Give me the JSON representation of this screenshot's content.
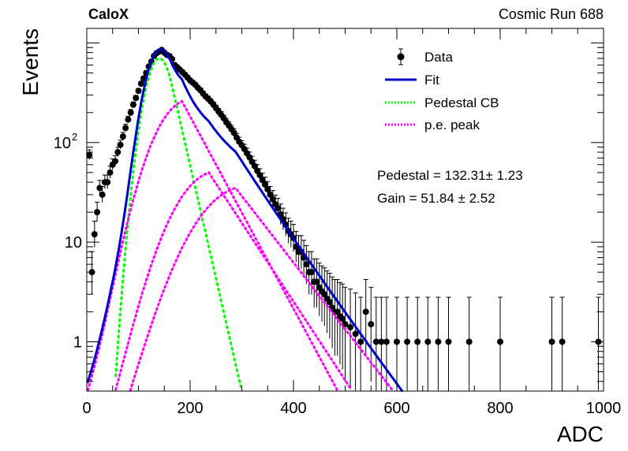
{
  "chart_data": {
    "type": "scatter",
    "experiment_label": "CaloX",
    "run_label": "Cosmic Run 688",
    "xlabel": "ADC",
    "ylabel": "Events",
    "xlim": [
      0,
      1000
    ],
    "ylim": [
      0.32,
      1400
    ],
    "y_scale": "log",
    "grid": false,
    "legend_position": "top-right",
    "x_ticks": [
      {
        "value": 0,
        "label": "0"
      },
      {
        "value": 200,
        "label": "200"
      },
      {
        "value": 400,
        "label": "400"
      },
      {
        "value": 600,
        "label": "600"
      },
      {
        "value": 800,
        "label": "800"
      },
      {
        "value": 1000,
        "label": "1000"
      }
    ],
    "y_ticks": [
      {
        "value": 1,
        "label": "1"
      },
      {
        "value": 10,
        "label": "10"
      },
      {
        "value": 100,
        "label": "10",
        "exponent": "2"
      }
    ],
    "legend": [
      {
        "label": "Data",
        "style": "marker",
        "color": "#000000"
      },
      {
        "label": "Fit",
        "style": "solid",
        "color": "#0000cc"
      },
      {
        "label": "Pedestal CB",
        "style": "dotted",
        "color": "#00ff00"
      },
      {
        "label": "p.e. peak",
        "style": "dotted",
        "color": "#ff00ff"
      }
    ],
    "annotations": [
      {
        "text": "Pedestal = 132.31± 1.23"
      },
      {
        "text": "Gain = 51.84 ± 2.52"
      }
    ],
    "fit": {
      "pedestal": 132.31,
      "pedestal_err": 1.23,
      "gain": 51.84,
      "gain_err": 2.52
    },
    "series": [
      {
        "name": "Data",
        "color": "#000000",
        "points": [
          [
            5,
            75
          ],
          [
            10,
            5
          ],
          [
            15,
            12
          ],
          [
            20,
            20
          ],
          [
            25,
            35
          ],
          [
            30,
            30
          ],
          [
            35,
            40
          ],
          [
            40,
            40
          ],
          [
            45,
            50
          ],
          [
            50,
            60
          ],
          [
            55,
            65
          ],
          [
            60,
            80
          ],
          [
            65,
            95
          ],
          [
            70,
            115
          ],
          [
            75,
            140
          ],
          [
            80,
            170
          ],
          [
            85,
            200
          ],
          [
            90,
            240
          ],
          [
            95,
            280
          ],
          [
            100,
            330
          ],
          [
            105,
            390
          ],
          [
            110,
            440
          ],
          [
            115,
            500
          ],
          [
            120,
            580
          ],
          [
            125,
            650
          ],
          [
            130,
            740
          ],
          [
            135,
            790
          ],
          [
            140,
            820
          ],
          [
            145,
            850
          ],
          [
            150,
            800
          ],
          [
            155,
            760
          ],
          [
            160,
            740
          ],
          [
            165,
            690
          ],
          [
            170,
            600
          ],
          [
            175,
            570
          ],
          [
            180,
            540
          ],
          [
            185,
            510
          ],
          [
            190,
            480
          ],
          [
            195,
            450
          ],
          [
            200,
            420
          ],
          [
            205,
            400
          ],
          [
            210,
            380
          ],
          [
            215,
            355
          ],
          [
            220,
            335
          ],
          [
            225,
            310
          ],
          [
            230,
            290
          ],
          [
            235,
            275
          ],
          [
            240,
            258
          ],
          [
            245,
            240
          ],
          [
            250,
            222
          ],
          [
            255,
            205
          ],
          [
            260,
            190
          ],
          [
            265,
            175
          ],
          [
            270,
            160
          ],
          [
            275,
            148
          ],
          [
            280,
            136
          ],
          [
            285,
            125
          ],
          [
            290,
            112
          ],
          [
            295,
            102
          ],
          [
            300,
            94
          ],
          [
            305,
            86
          ],
          [
            310,
            78
          ],
          [
            315,
            71
          ],
          [
            320,
            64
          ],
          [
            325,
            58
          ],
          [
            330,
            52
          ],
          [
            335,
            47
          ],
          [
            340,
            42
          ],
          [
            345,
            38
          ],
          [
            350,
            34
          ],
          [
            355,
            30
          ],
          [
            360,
            27
          ],
          [
            365,
            24
          ],
          [
            370,
            22
          ],
          [
            375,
            19
          ],
          [
            380,
            17
          ],
          [
            385,
            15
          ],
          [
            390,
            13
          ],
          [
            395,
            12
          ],
          [
            400,
            11
          ],
          [
            405,
            9
          ],
          [
            410,
            8
          ],
          [
            415,
            8
          ],
          [
            420,
            7
          ],
          [
            425,
            6
          ],
          [
            430,
            5
          ],
          [
            435,
            5
          ],
          [
            440,
            4
          ],
          [
            445,
            4
          ],
          [
            450,
            3.5
          ],
          [
            455,
            3.2
          ],
          [
            460,
            3
          ],
          [
            465,
            2.7
          ],
          [
            470,
            2.5
          ],
          [
            475,
            2.2
          ],
          [
            480,
            2
          ],
          [
            485,
            2
          ],
          [
            490,
            1.8
          ],
          [
            495,
            1.7
          ],
          [
            500,
            1.5
          ],
          [
            510,
            1.4
          ],
          [
            520,
            1.2
          ],
          [
            530,
            1
          ],
          [
            540,
            2
          ],
          [
            550,
            1.5
          ],
          [
            560,
            1
          ],
          [
            570,
            1
          ],
          [
            580,
            1
          ],
          [
            600,
            1
          ],
          [
            620,
            1
          ],
          [
            640,
            1
          ],
          [
            660,
            1
          ],
          [
            680,
            1
          ],
          [
            700,
            1
          ],
          [
            740,
            1
          ],
          [
            800,
            1
          ],
          [
            900,
            1
          ],
          [
            920,
            1
          ],
          [
            990,
            1
          ]
        ]
      }
    ]
  }
}
